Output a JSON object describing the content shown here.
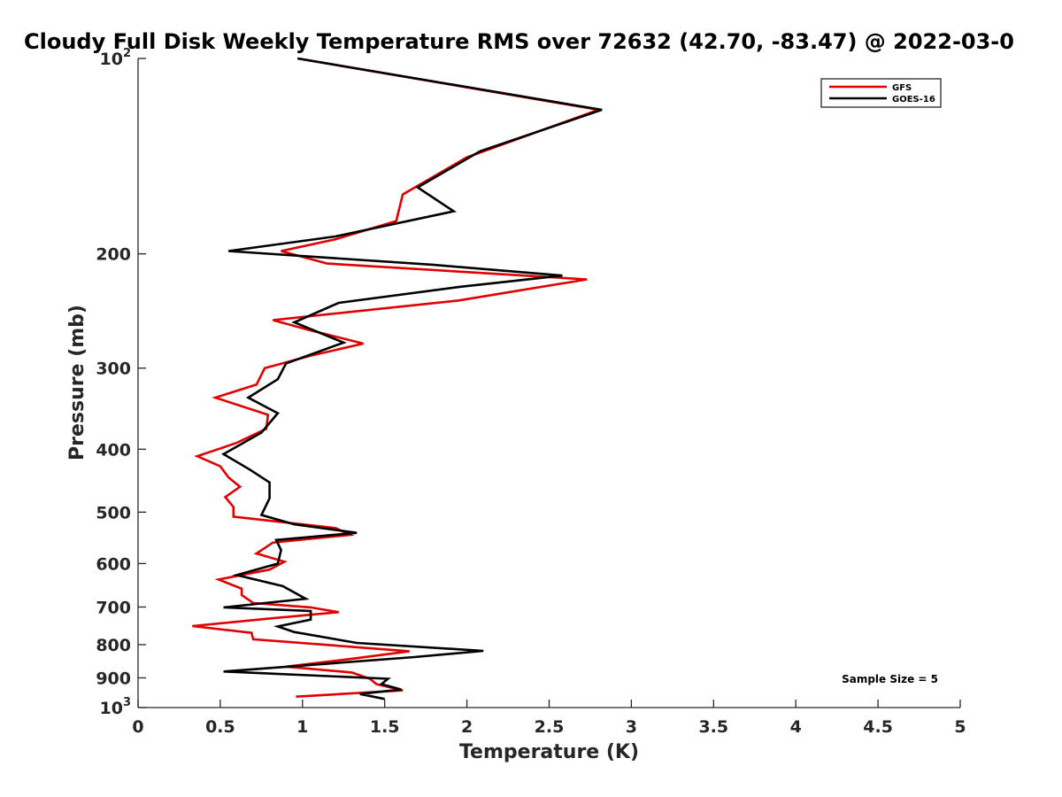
{
  "chart_data": {
    "type": "line",
    "title": "Cloudy Full Disk Weekly Temperature RMS over 72632 (42.70, -83.47) @ 2022-03-0",
    "xlabel": "Temperature (K)",
    "ylabel": "Pressure (mb)",
    "xlim": [
      0,
      5
    ],
    "ylim": [
      100,
      1000
    ],
    "y_scale": "log",
    "y_reversed": true,
    "grid": false,
    "legend_position": "top-right",
    "x_ticks": [
      "0",
      "0.5",
      "1",
      "1.5",
      "2",
      "2.5",
      "3",
      "3.5",
      "4",
      "4.5",
      "5"
    ],
    "y_ticks": [
      {
        "value": 100,
        "base": "10",
        "exp": "2"
      },
      {
        "value": 200,
        "label": "200"
      },
      {
        "value": 300,
        "label": "300"
      },
      {
        "value": 400,
        "label": "400"
      },
      {
        "value": 500,
        "label": "500"
      },
      {
        "value": 600,
        "label": "600"
      },
      {
        "value": 700,
        "label": "700"
      },
      {
        "value": 800,
        "label": "800"
      },
      {
        "value": 900,
        "label": "900"
      },
      {
        "value": 1000,
        "base": "10",
        "exp": "3"
      }
    ],
    "annotation": "Sample Size = 5",
    "series": [
      {
        "name": "GFS",
        "color": "#e00000",
        "points": [
          [
            0.97,
            100
          ],
          [
            2.8,
            120
          ],
          [
            2.0,
            142
          ],
          [
            1.61,
            162
          ],
          [
            1.57,
            178
          ],
          [
            1.2,
            190
          ],
          [
            0.87,
            198
          ],
          [
            1.15,
            207
          ],
          [
            2.73,
            219
          ],
          [
            1.95,
            236
          ],
          [
            0.82,
            253
          ],
          [
            1.04,
            262
          ],
          [
            1.37,
            275
          ],
          [
            1.05,
            287
          ],
          [
            0.77,
            300
          ],
          [
            0.72,
            318
          ],
          [
            0.47,
            333
          ],
          [
            0.79,
            354
          ],
          [
            0.78,
            372
          ],
          [
            0.6,
            391
          ],
          [
            0.36,
            410
          ],
          [
            0.5,
            425
          ],
          [
            0.55,
            442
          ],
          [
            0.62,
            457
          ],
          [
            0.53,
            474
          ],
          [
            0.58,
            491
          ],
          [
            0.58,
            508
          ],
          [
            1.2,
            529
          ],
          [
            1.29,
            542
          ],
          [
            0.82,
            557
          ],
          [
            0.72,
            579
          ],
          [
            0.89,
            596
          ],
          [
            0.8,
            613
          ],
          [
            0.49,
            635
          ],
          [
            0.63,
            656
          ],
          [
            0.63,
            671
          ],
          [
            0.7,
            690
          ],
          [
            1.05,
            701
          ],
          [
            1.22,
            713
          ],
          [
            0.78,
            730
          ],
          [
            0.33,
            749
          ],
          [
            0.69,
            767
          ],
          [
            0.7,
            785
          ],
          [
            1.65,
            819
          ],
          [
            1.3,
            841
          ],
          [
            0.9,
            865
          ],
          [
            1.3,
            883
          ],
          [
            1.41,
            903
          ],
          [
            1.45,
            920
          ],
          [
            1.61,
            941
          ],
          [
            0.96,
            962
          ]
        ]
      },
      {
        "name": "GOES-16",
        "color": "#000000",
        "points": [
          [
            0.97,
            100
          ],
          [
            2.82,
            120
          ],
          [
            2.08,
            139
          ],
          [
            1.7,
            158
          ],
          [
            1.92,
            172
          ],
          [
            1.2,
            188
          ],
          [
            0.55,
            198
          ],
          [
            1.8,
            208
          ],
          [
            2.58,
            216
          ],
          [
            1.95,
            225
          ],
          [
            1.22,
            238
          ],
          [
            0.95,
            255
          ],
          [
            1.25,
            274
          ],
          [
            0.9,
            295
          ],
          [
            0.85,
            312
          ],
          [
            0.67,
            333
          ],
          [
            0.85,
            352
          ],
          [
            0.75,
            377
          ],
          [
            0.52,
            407
          ],
          [
            0.68,
            430
          ],
          [
            0.8,
            450
          ],
          [
            0.8,
            476
          ],
          [
            0.75,
            505
          ],
          [
            0.95,
            522
          ],
          [
            1.33,
            538
          ],
          [
            0.84,
            552
          ],
          [
            0.87,
            572
          ],
          [
            0.85,
            600
          ],
          [
            0.6,
            625
          ],
          [
            0.88,
            650
          ],
          [
            1.02,
            680
          ],
          [
            0.52,
            701
          ],
          [
            1.05,
            710
          ],
          [
            1.05,
            732
          ],
          [
            0.85,
            750
          ],
          [
            0.95,
            765
          ],
          [
            1.33,
            795
          ],
          [
            2.1,
            818
          ],
          [
            1.68,
            836
          ],
          [
            0.52,
            880
          ],
          [
            1.52,
            903
          ],
          [
            1.48,
            920
          ],
          [
            1.6,
            938
          ],
          [
            1.35,
            953
          ],
          [
            1.5,
            970
          ]
        ]
      }
    ]
  }
}
